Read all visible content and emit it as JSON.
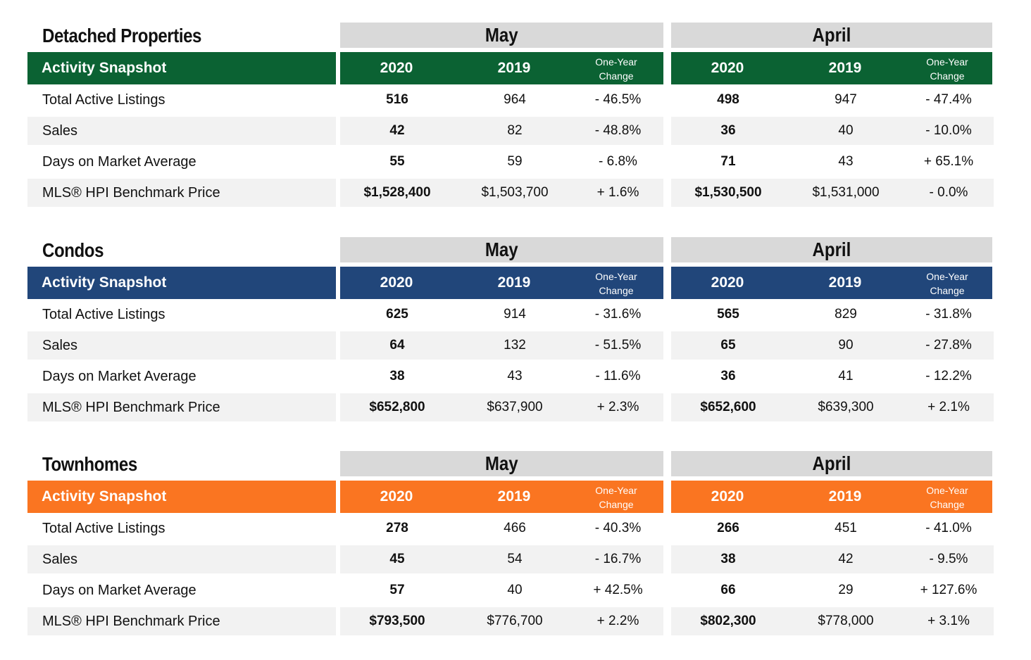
{
  "columns": {
    "month1": "May",
    "month2": "April",
    "snapshot_label": "Activity Snapshot",
    "year1": "2020",
    "year2": "2019",
    "change_line1": "One-Year",
    "change_line2": "Change"
  },
  "colors": {
    "detached": "#0b6233",
    "condos": "#21467a",
    "townhomes": "#fa7521",
    "month_band": "#d9d9d9",
    "row_shade": "#f2f2f2"
  },
  "sections": [
    {
      "title": "Detached Properties",
      "rows": [
        {
          "label": "Total Active Listings",
          "may_2020": "516",
          "may_2019": "964",
          "may_change": "- 46.5%",
          "apr_2020": "498",
          "apr_2019": "947",
          "apr_change": "- 47.4%"
        },
        {
          "label": "Sales",
          "may_2020": "42",
          "may_2019": "82",
          "may_change": "- 48.8%",
          "apr_2020": "36",
          "apr_2019": "40",
          "apr_change": "- 10.0%"
        },
        {
          "label": "Days on Market Average",
          "may_2020": "55",
          "may_2019": "59",
          "may_change": "- 6.8%",
          "apr_2020": "71",
          "apr_2019": "43",
          "apr_change": "+ 65.1%"
        },
        {
          "label": "MLS® HPI Benchmark Price",
          "may_2020": "$1,528,400",
          "may_2019": "$1,503,700",
          "may_change": "+ 1.6%",
          "apr_2020": "$1,530,500",
          "apr_2019": "$1,531,000",
          "apr_change": "- 0.0%"
        }
      ]
    },
    {
      "title": "Condos",
      "rows": [
        {
          "label": "Total Active Listings",
          "may_2020": "625",
          "may_2019": "914",
          "may_change": "- 31.6%",
          "apr_2020": "565",
          "apr_2019": "829",
          "apr_change": "- 31.8%"
        },
        {
          "label": "Sales",
          "may_2020": "64",
          "may_2019": "132",
          "may_change": "- 51.5%",
          "apr_2020": "65",
          "apr_2019": "90",
          "apr_change": "- 27.8%"
        },
        {
          "label": "Days on Market Average",
          "may_2020": "38",
          "may_2019": "43",
          "may_change": "- 11.6%",
          "apr_2020": "36",
          "apr_2019": "41",
          "apr_change": "- 12.2%"
        },
        {
          "label": "MLS® HPI Benchmark Price",
          "may_2020": "$652,800",
          "may_2019": "$637,900",
          "may_change": "+ 2.3%",
          "apr_2020": "$652,600",
          "apr_2019": "$639,300",
          "apr_change": "+ 2.1%"
        }
      ]
    },
    {
      "title": "Townhomes",
      "rows": [
        {
          "label": "Total Active Listings",
          "may_2020": "278",
          "may_2019": "466",
          "may_change": "- 40.3%",
          "apr_2020": "266",
          "apr_2019": "451",
          "apr_change": "- 41.0%"
        },
        {
          "label": "Sales",
          "may_2020": "45",
          "may_2019": "54",
          "may_change": "- 16.7%",
          "apr_2020": "38",
          "apr_2019": "42",
          "apr_change": "- 9.5%"
        },
        {
          "label": "Days on Market Average",
          "may_2020": "57",
          "may_2019": "40",
          "may_change": "+ 42.5%",
          "apr_2020": "66",
          "apr_2019": "29",
          "apr_change": "+ 127.6%"
        },
        {
          "label": "MLS® HPI Benchmark Price",
          "may_2020": "$793,500",
          "may_2019": "$776,700",
          "may_change": "+ 2.2%",
          "apr_2020": "$802,300",
          "apr_2019": "$778,000",
          "apr_change": "+ 3.1%"
        }
      ]
    }
  ]
}
